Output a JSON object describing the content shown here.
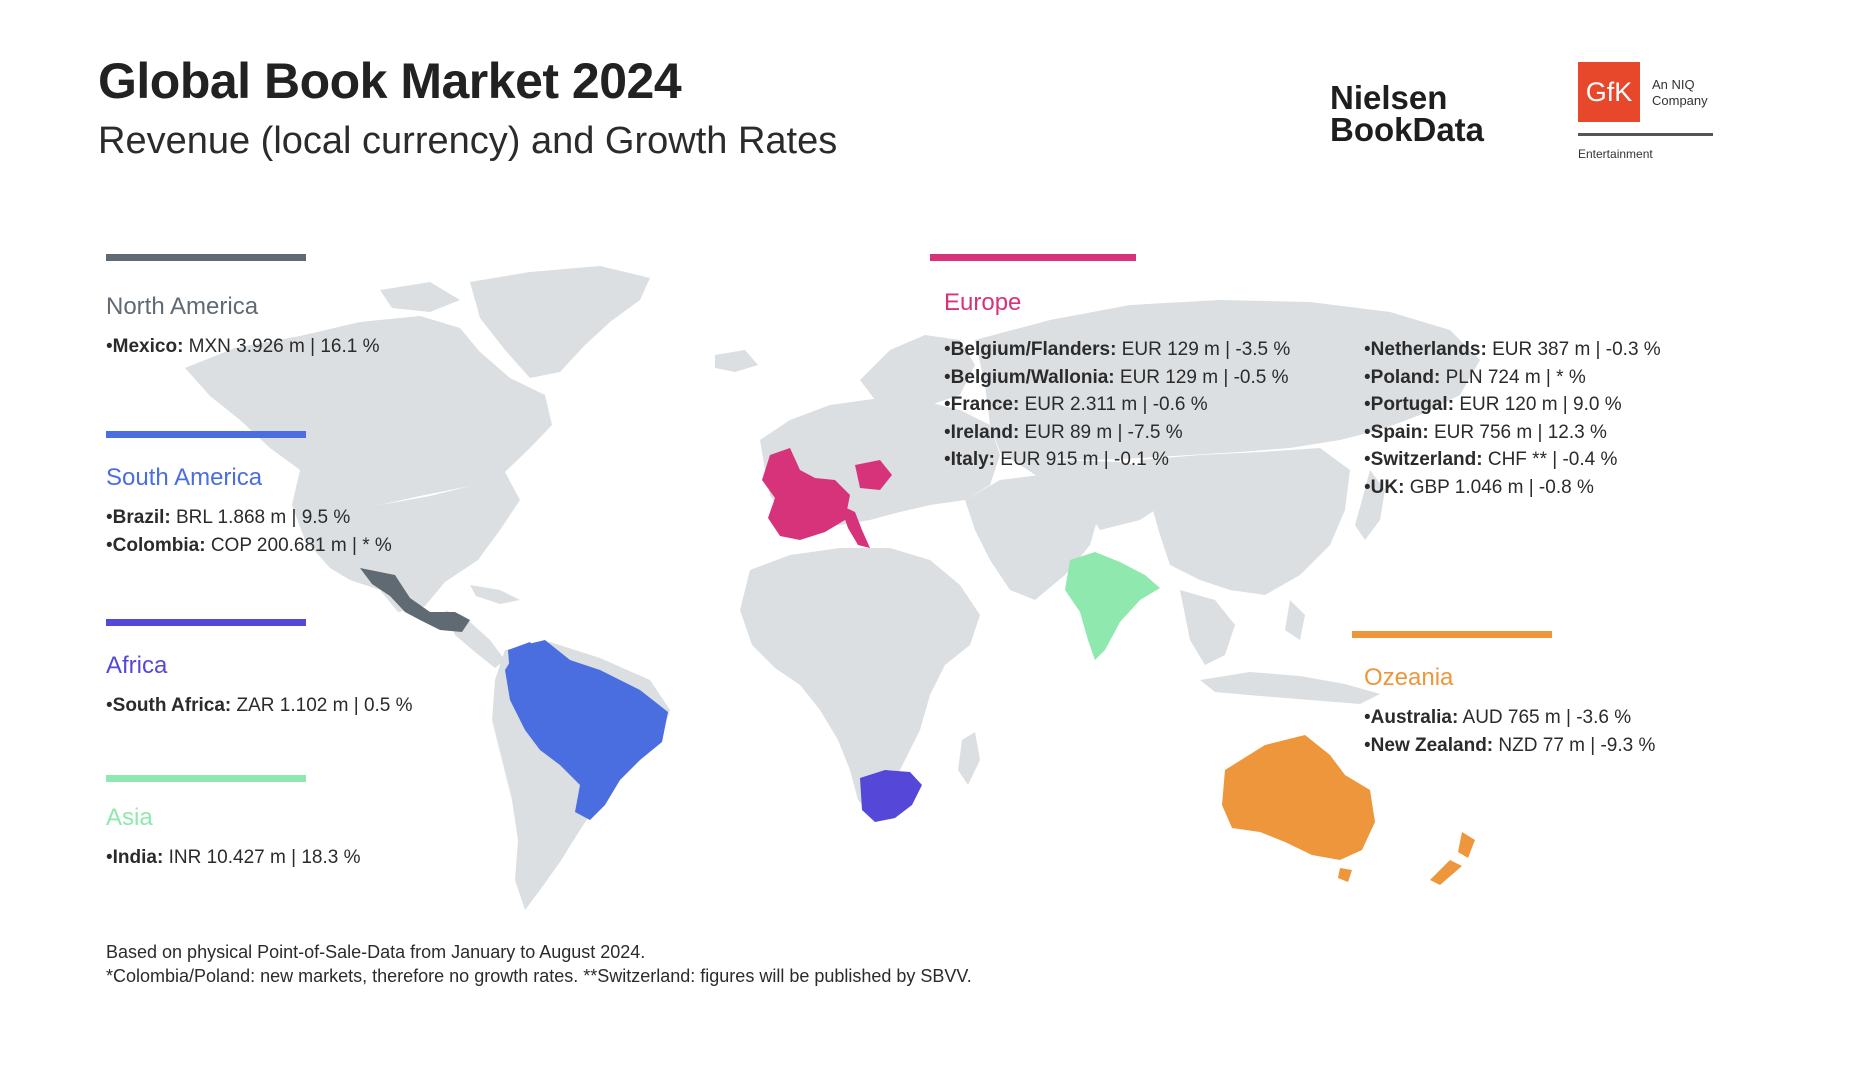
{
  "header": {
    "title": "Global Book Market 2024",
    "subtitle": "Revenue (local currency) and Growth Rates"
  },
  "logos": {
    "nielsen_line1": "Nielsen",
    "nielsen_line2": "BookData",
    "gfk": "GfK",
    "gfk_tag_line1": "An NIQ",
    "gfk_tag_line2": "Company",
    "gfk_division": "Entertainment"
  },
  "colors": {
    "north_america": "#606a72",
    "south_america": "#4a6de0",
    "africa": "#5548d8",
    "asia": "#8fe8ae",
    "europe": "#d6337a",
    "oceania": "#ee963b",
    "land": "#dbdfe1"
  },
  "regions": {
    "north_america": {
      "name": "North America",
      "items": [
        {
          "country": "Mexico:",
          "value": " MXN 3.926 m | 16.1 %"
        }
      ]
    },
    "south_america": {
      "name": "South America",
      "items": [
        {
          "country": "Brazil:",
          "value": " BRL 1.868 m | 9.5 %"
        },
        {
          "country": "Colombia:",
          "value": " COP 200.681 m | * %"
        }
      ]
    },
    "africa": {
      "name": "Africa",
      "items": [
        {
          "country": "South Africa:",
          "value": " ZAR 1.102 m | 0.5 %"
        }
      ]
    },
    "asia": {
      "name": "Asia",
      "items": [
        {
          "country": "India:",
          "value": " INR 10.427 m | 18.3 %"
        }
      ]
    },
    "europe": {
      "name": "Europe",
      "col1": [
        {
          "country": "Belgium/Flanders:",
          "value": " EUR 129 m | -3.5 %"
        },
        {
          "country": "Belgium/Wallonia:",
          "value": " EUR 129 m | -0.5 %"
        },
        {
          "country": "France:",
          "value": " EUR 2.311 m | -0.6 %"
        },
        {
          "country": "Ireland:",
          "value": " EUR 89 m | -7.5 %"
        },
        {
          "country": "Italy:",
          "value": " EUR 915 m | -0.1 %"
        }
      ],
      "col2": [
        {
          "country": "Netherlands:",
          "value": " EUR 387 m | -0.3 %"
        },
        {
          "country": "Poland:",
          "value": " PLN 724 m | * %"
        },
        {
          "country": "Portugal:",
          "value": " EUR 120 m | 9.0 %"
        },
        {
          "country": "Spain:",
          "value": " EUR 756 m | 12.3 %"
        },
        {
          "country": "Switzerland:",
          "value": " CHF ** | -0.4 %"
        },
        {
          "country": "UK:",
          "value": " GBP 1.046 m | -0.8 %"
        }
      ]
    },
    "oceania": {
      "name": "Ozeania",
      "items": [
        {
          "country": "Australia:",
          "value": " AUD 765 m | -3.6 %"
        },
        {
          "country": "New Zealand:",
          "value": " NZD 77 m | -9.3 %"
        }
      ]
    }
  },
  "footnotes": {
    "line1": "Based on physical Point-of-Sale-Data from January to August 2024.",
    "line2": "*Colombia/Poland: new markets, therefore no growth rates. **Switzerland: figures will be published by SBVV."
  }
}
